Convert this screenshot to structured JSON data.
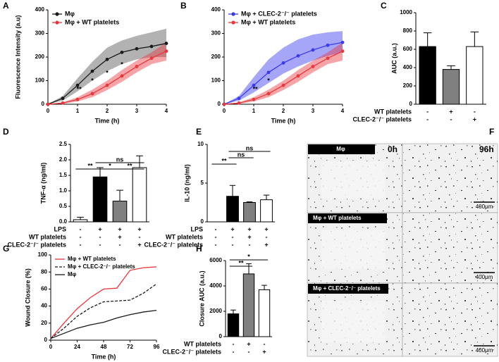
{
  "chart_data": [
    {
      "panel": "A",
      "type": "line",
      "ylabel": "Fluorescence Intensity (a.u)",
      "xlabel": "Time (h)",
      "x": [
        0,
        0.5,
        1,
        1.5,
        2,
        2.5,
        3,
        3.5,
        4
      ],
      "xlim": [
        0,
        4
      ],
      "xticks": [
        0,
        1,
        2,
        3,
        4
      ],
      "ylim": [
        0,
        400
      ],
      "yticks": [
        0,
        100,
        200,
        300,
        400
      ],
      "markers": true,
      "series": [
        {
          "name": "Mφ",
          "color": "#1a1a1a",
          "band_color": "#555555",
          "values": [
            0,
            25,
            80,
            140,
            190,
            220,
            235,
            245,
            258
          ],
          "lower": [
            0,
            15,
            55,
            100,
            140,
            170,
            190,
            200,
            200
          ],
          "upper": [
            0,
            35,
            110,
            180,
            240,
            270,
            290,
            305,
            320
          ]
        },
        {
          "name": "Mφ + WT platelets",
          "color": "#e8383d",
          "band_color": "#e8383d",
          "values": [
            0,
            5,
            20,
            45,
            80,
            120,
            160,
            195,
            225
          ],
          "lower": [
            0,
            2,
            12,
            30,
            60,
            95,
            135,
            170,
            185
          ],
          "upper": [
            0,
            8,
            30,
            62,
            100,
            145,
            185,
            220,
            262
          ]
        }
      ],
      "annotations": [
        "**",
        "*",
        "*",
        "*"
      ]
    },
    {
      "panel": "B",
      "type": "line",
      "xlabel": "Time (h)",
      "x": [
        0,
        0.5,
        1,
        1.5,
        2,
        2.5,
        3,
        3.5,
        4
      ],
      "xlim": [
        0,
        4
      ],
      "xticks": [
        0,
        1,
        2,
        3,
        4
      ],
      "ylim": [
        0,
        400
      ],
      "yticks": [
        0,
        100,
        200,
        300,
        400
      ],
      "markers": true,
      "series": [
        {
          "name": "Mφ + CLEC-2⁻/⁻ platelets",
          "color": "#3a3af0",
          "band_color": "#3a3af0",
          "values": [
            0,
            25,
            80,
            135,
            175,
            205,
            230,
            250,
            262
          ],
          "lower": [
            0,
            15,
            50,
            90,
            130,
            160,
            185,
            205,
            220
          ],
          "upper": [
            0,
            35,
            115,
            190,
            240,
            275,
            295,
            305,
            310
          ]
        },
        {
          "name": "Mφ + WT platelets",
          "color": "#e8383d",
          "band_color": "#e8383d",
          "values": [
            0,
            5,
            20,
            45,
            80,
            120,
            160,
            195,
            225
          ],
          "lower": [
            0,
            2,
            12,
            30,
            60,
            95,
            135,
            170,
            185
          ],
          "upper": [
            0,
            8,
            30,
            62,
            100,
            145,
            185,
            220,
            262
          ]
        }
      ],
      "annotations": [
        "**",
        "*"
      ]
    },
    {
      "panel": "C",
      "type": "bar",
      "ylabel": "AUC (a.u.)",
      "ylim": [
        0,
        1000
      ],
      "yticks": [
        0,
        200,
        400,
        600,
        800,
        1000
      ],
      "values": [
        630,
        380,
        630
      ],
      "errors": [
        150,
        40,
        160
      ],
      "colors": [
        "#000000",
        "#808080",
        "#ffffff"
      ],
      "conditions": [
        {
          "label": "WT platelets",
          "signs": [
            "-",
            "+",
            "-"
          ]
        },
        {
          "label": "CLEC-2⁻/⁻ platelets",
          "signs": [
            "-",
            "-",
            "+"
          ]
        }
      ]
    },
    {
      "panel": "D",
      "type": "bar",
      "ylabel": "TNF-α (ng/ml)",
      "ylim": [
        0,
        2.5
      ],
      "yticks": [
        {
          "value": 0,
          "label": "0.0"
        },
        0.5,
        {
          "value": 1,
          "label": "1.0"
        },
        1.5,
        {
          "value": 2,
          "label": "2.0"
        },
        2.5
      ],
      "values": [
        0.07,
        1.45,
        0.67,
        1.75
      ],
      "errors": [
        0.08,
        0.3,
        0.35,
        0.38
      ],
      "colors": [
        "#ffffff",
        "#000000",
        "#808080",
        "#ffffff"
      ],
      "conditions": [
        {
          "label": "LPS",
          "signs": [
            "-",
            "+",
            "+",
            "+"
          ]
        },
        {
          "label": "WT platelets",
          "signs": [
            "-",
            "-",
            "+",
            "-"
          ]
        },
        {
          "label": "CLEC-2⁻/⁻ platelets",
          "signs": [
            "-",
            "-",
            "-",
            "+"
          ]
        }
      ],
      "significance": [
        "**",
        "*",
        "**",
        "ns"
      ]
    },
    {
      "panel": "E",
      "type": "bar",
      "ylabel": "IL-10 (ng/ml)",
      "ylim": [
        0,
        10
      ],
      "yticks": [
        0,
        5,
        10
      ],
      "values": [
        0,
        3.3,
        2.5,
        2.85
      ],
      "errors": [
        0,
        1.4,
        0.08,
        0.6
      ],
      "colors": [
        "#ffffff",
        "#000000",
        "#808080",
        "#ffffff"
      ],
      "conditions": [
        {
          "label": "LPS",
          "signs": [
            "-",
            "+",
            "+",
            "+"
          ]
        },
        {
          "label": "WT platelets",
          "signs": [
            "-",
            "-",
            "+",
            "-"
          ]
        },
        {
          "label": "CLEC-2⁻/⁻ platelets",
          "signs": [
            "-",
            "-",
            "-",
            "+"
          ]
        }
      ],
      "significance": [
        "**",
        "ns",
        "ns"
      ]
    },
    {
      "panel": "G",
      "type": "line",
      "ylabel": "Wound Closure (%)",
      "xlabel": "Time (h)",
      "x": [
        0,
        12,
        24,
        36,
        48,
        60,
        72,
        84,
        96
      ],
      "xlim": [
        0,
        96
      ],
      "xticks": [
        0,
        24,
        48,
        72,
        96
      ],
      "ylim": [
        0,
        100
      ],
      "yticks": [
        0,
        20,
        40,
        60,
        80,
        100
      ],
      "markers": false,
      "series": [
        {
          "name": "Mφ + WT platelets",
          "color": "#e8383d",
          "dash": false,
          "values": [
            2,
            20,
            37,
            50,
            60,
            61,
            82,
            85,
            86
          ]
        },
        {
          "name": "Mφ + CLEC-2⁻/⁻ platelets",
          "color": "#1a1a1a",
          "dash": true,
          "values": [
            2,
            14,
            28,
            38,
            45,
            46,
            47,
            55,
            66
          ]
        },
        {
          "name": "Mφ",
          "color": "#1a1a1a",
          "dash": false,
          "values": [
            2,
            8,
            14,
            18,
            21,
            26,
            30,
            33,
            35
          ]
        }
      ]
    },
    {
      "panel": "H",
      "type": "bar",
      "ylabel": "Closure AUC (a.u.)",
      "ylim": [
        0,
        6000
      ],
      "yticks": [
        0,
        2000,
        4000,
        6000
      ],
      "values": [
        1800,
        4950,
        3700
      ],
      "errors": [
        300,
        800,
        350
      ],
      "colors": [
        "#000000",
        "#808080",
        "#ffffff"
      ],
      "conditions": [
        {
          "label": "WT platelets",
          "signs": [
            "-",
            "+",
            "-"
          ]
        },
        {
          "label": "CLEC-2⁻/⁻ platelets",
          "signs": [
            "-",
            "-",
            "+"
          ]
        }
      ],
      "significance": [
        "**",
        "*"
      ]
    }
  ],
  "image_panel": {
    "panel": "F",
    "time_labels": [
      "0h",
      "96h"
    ],
    "rows": [
      {
        "label": "Mφ",
        "scale_bar": "400μm"
      },
      {
        "label": "Mφ + WT platelets",
        "scale_bar": "400μm"
      },
      {
        "label": "Mφ + CLEC-2⁻/⁻ platelets",
        "scale_bar": "400μm"
      }
    ]
  }
}
